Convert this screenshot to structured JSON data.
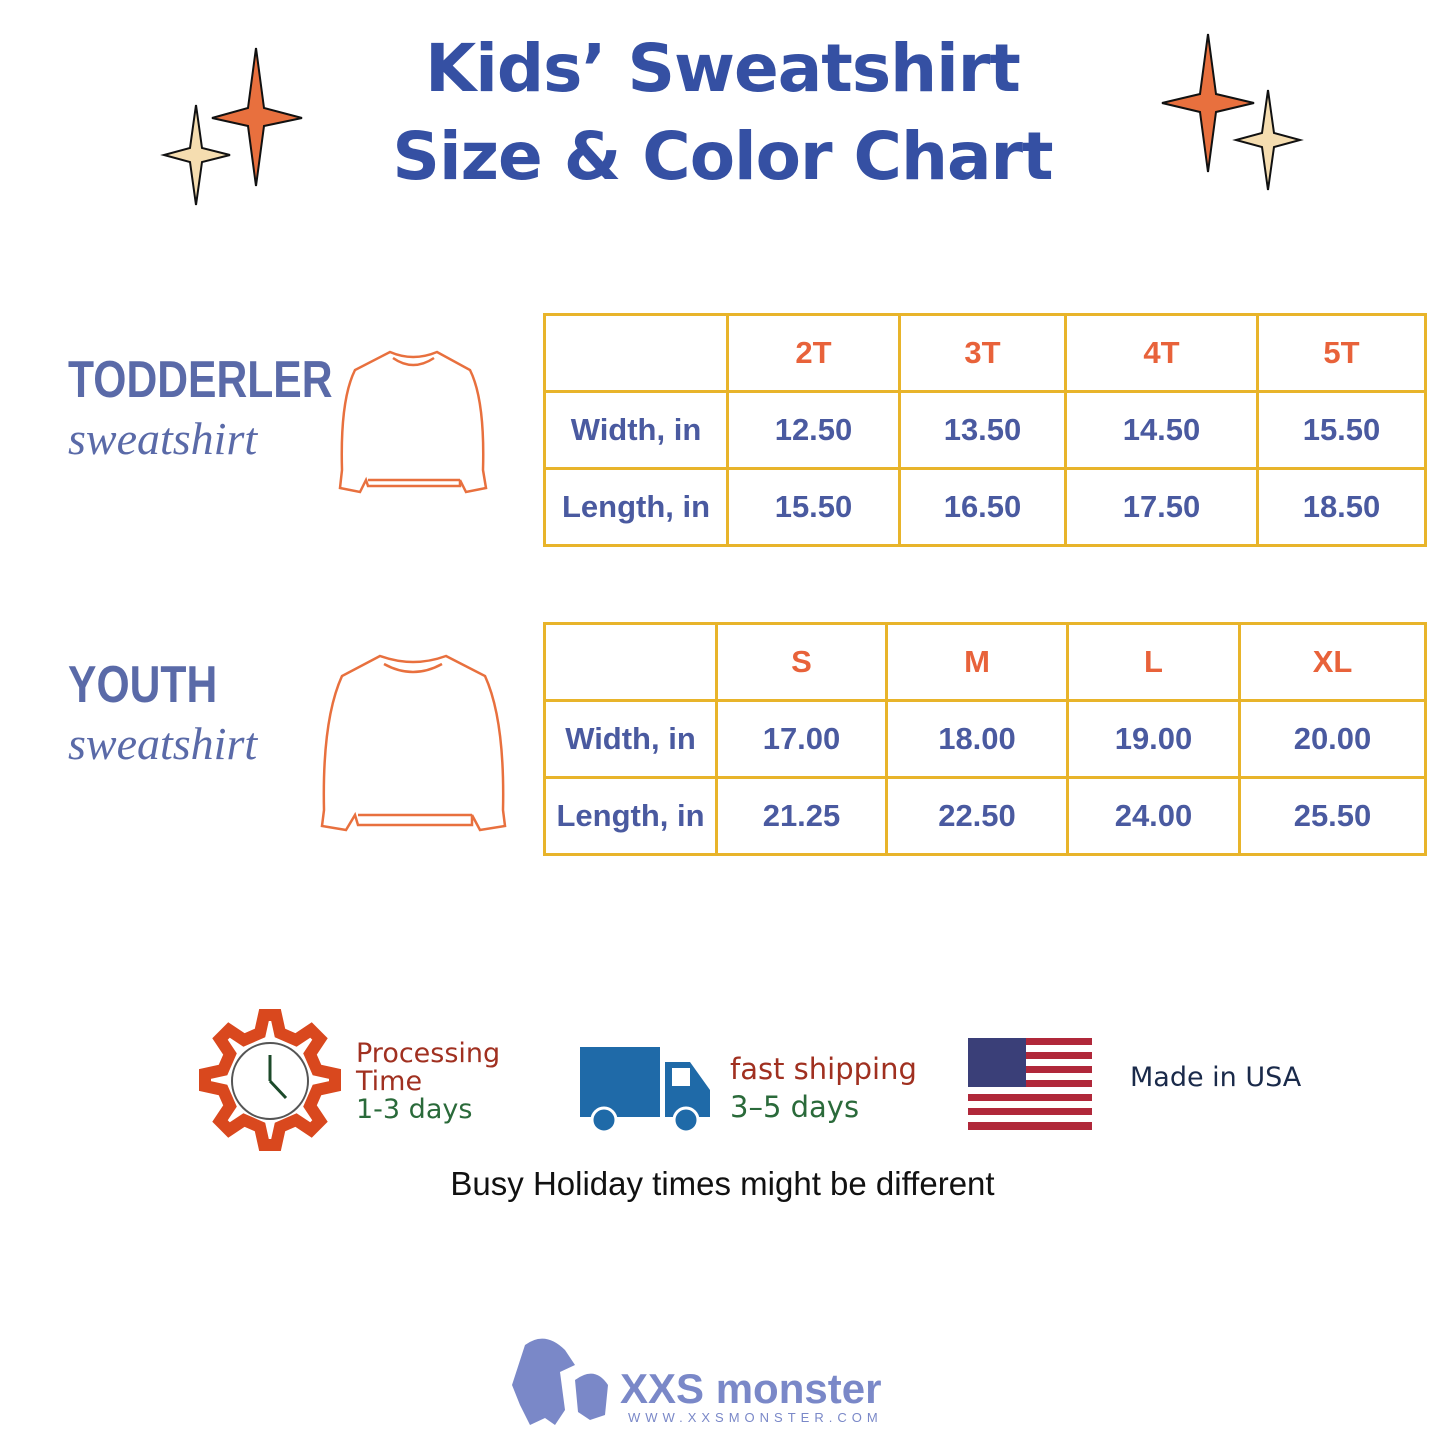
{
  "header": {
    "title_line1": "Kids’ Sweatshirt",
    "title_line2": "Size & Color Chart"
  },
  "sections": [
    {
      "label": "TODDERLER",
      "script": "sweatshirt",
      "table": {
        "sizes": [
          "2T",
          "3T",
          "4T",
          "5T"
        ],
        "rows": [
          {
            "label": "Width, in",
            "values": [
              "12.50",
              "13.50",
              "14.50",
              "15.50"
            ]
          },
          {
            "label": "Length, in",
            "values": [
              "15.50",
              "16.50",
              "17.50",
              "18.50"
            ]
          }
        ]
      }
    },
    {
      "label": "YOUTH",
      "script": "sweatshirt",
      "table": {
        "sizes": [
          "S",
          "M",
          "L",
          "XL"
        ],
        "rows": [
          {
            "label": "Width, in",
            "values": [
              "17.00",
              "18.00",
              "19.00",
              "20.00"
            ]
          },
          {
            "label": "Length, in",
            "values": [
              "21.25",
              "22.50",
              "24.00",
              "25.50"
            ]
          }
        ]
      }
    }
  ],
  "info": [
    {
      "lines": [
        "Processing",
        "Time",
        "1-3 days"
      ]
    },
    {
      "lines": [
        "fast shipping",
        "3–5 days"
      ]
    },
    {
      "lines": [
        "Made in USA"
      ]
    }
  ],
  "note": "Busy Holiday times might be different",
  "logo": {
    "name": "XXS monster",
    "url": "WWW.XXSMONSTER.COM"
  }
}
